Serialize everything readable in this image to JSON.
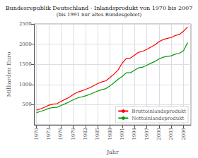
{
  "chart_data": {
    "type": "line",
    "title": "Bundesrepublik Deutschland - Inlandsprodukt von 1970 bis 2007",
    "subtitle": "(bis 1991 nur altes Bundesgebiet)",
    "xlabel": "Jahr",
    "ylabel": "Milliarden Euro",
    "x": [
      1970,
      1971,
      1972,
      1973,
      1974,
      1975,
      1976,
      1977,
      1978,
      1979,
      1980,
      1981,
      1982,
      1983,
      1984,
      1985,
      1986,
      1987,
      1988,
      1989,
      1990,
      1991,
      1992,
      1993,
      1994,
      1995,
      1996,
      1997,
      1998,
      1999,
      2000,
      2001,
      2002,
      2003,
      2004,
      2005,
      2006,
      2007
    ],
    "series": [
      {
        "name": "Bruttoinlandsprodukt",
        "color": "#ff0000",
        "values": [
          364,
          397,
          437,
          487,
          513,
          524,
          580,
          631,
          683,
          750,
          807,
          842,
          878,
          918,
          969,
          1023,
          1064,
          1093,
          1175,
          1261,
          1365,
          1534,
          1647,
          1655,
          1726,
          1800,
          1823,
          1872,
          1929,
          1985,
          2063,
          2113,
          2145,
          2163,
          2215,
          2243,
          2322,
          2428
        ]
      },
      {
        "name": "Nettoinlandsprodukt",
        "color": "#009900",
        "values": [
          305,
          332,
          367,
          408,
          428,
          435,
          480,
          523,
          567,
          621,
          665,
          690,
          718,
          751,
          795,
          839,
          872,
          899,
          968,
          1044,
          1133,
          1201,
          1291,
          1291,
          1355,
          1413,
          1430,
          1477,
          1527,
          1572,
          1635,
          1676,
          1698,
          1712,
          1754,
          1775,
          1840,
          2040
        ]
      }
    ],
    "xlim": [
      1969.5,
      2007.8
    ],
    "ylim": [
      0,
      2500
    ],
    "xticks": [
      1970,
      1973,
      1976,
      1979,
      1982,
      1985,
      1988,
      1991,
      1994,
      1997,
      2000,
      2003,
      2006
    ],
    "yticks": [
      500,
      1000,
      1500,
      2000,
      2500
    ],
    "grid": true,
    "legend": "lower right"
  }
}
